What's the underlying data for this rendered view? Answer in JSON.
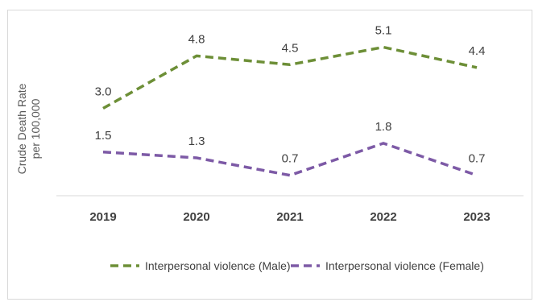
{
  "chart_data": {
    "type": "line",
    "categories": [
      "2019",
      "2020",
      "2021",
      "2022",
      "2023"
    ],
    "series": [
      {
        "name": "Interpersonal violence (Male)",
        "values": [
          3.0,
          4.8,
          4.5,
          5.1,
          4.4
        ],
        "color": "#6d8f37",
        "labels": [
          "3.0",
          "4.8",
          "4.5",
          "5.1",
          "4.4"
        ]
      },
      {
        "name": "Interpersonal violence (Female)",
        "values": [
          1.5,
          1.3,
          0.7,
          1.8,
          0.7
        ],
        "color": "#7d5aa6",
        "labels": [
          "1.5",
          "1.3",
          "0.7",
          "1.8",
          "0.7"
        ]
      }
    ],
    "ylabel_line1": "Crude Death Rate",
    "ylabel_line2": "per 100,000",
    "ylim": [
      0,
      6
    ],
    "grid": false,
    "legend": "bottom"
  }
}
